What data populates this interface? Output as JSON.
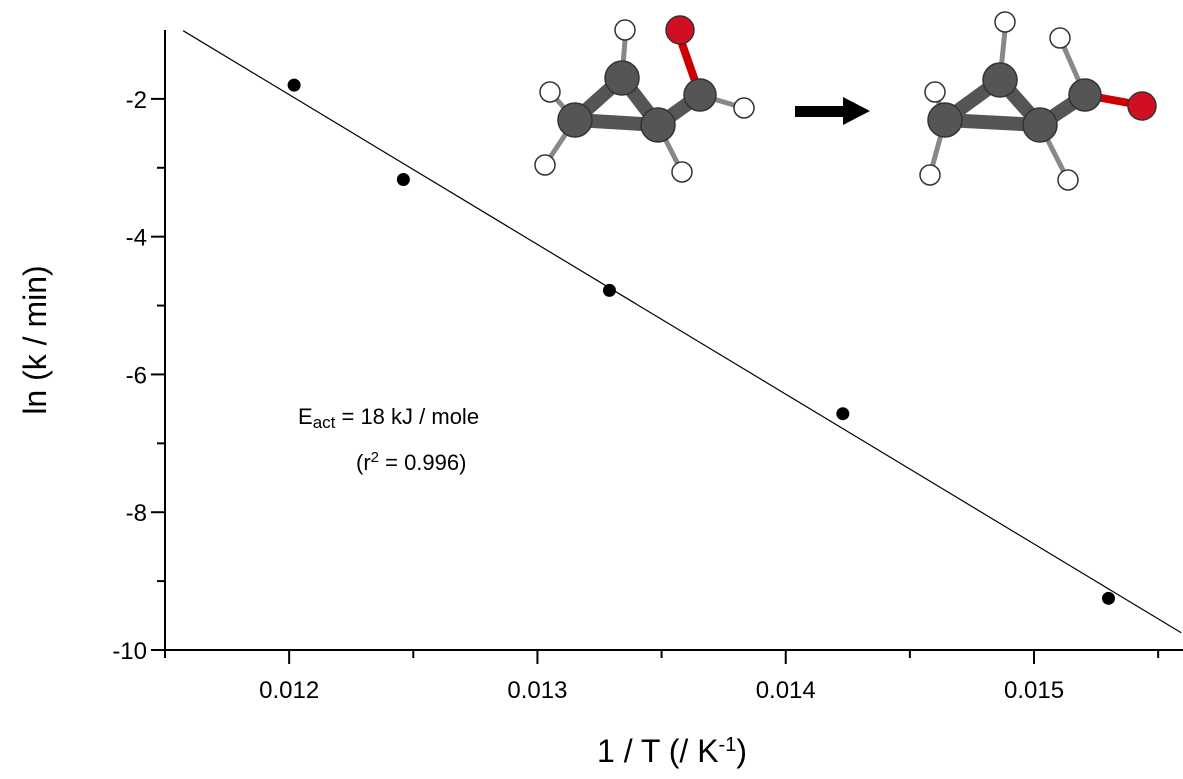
{
  "chart_data": {
    "type": "scatter",
    "x": [
      0.01202,
      0.01246,
      0.01329,
      0.01423,
      0.0153
    ],
    "values": [
      -1.8,
      -3.17,
      -4.78,
      -6.57,
      -9.25
    ],
    "color": "#000000",
    "fit_line": {
      "x": [
        0.011573,
        0.015593
      ],
      "values": [
        -1.01,
        -9.75
      ]
    },
    "xlim": [
      0.0115,
      0.0156
    ],
    "ylim": [
      -10,
      -1
    ],
    "xticks": [
      0.012,
      0.013,
      0.014,
      0.015
    ],
    "yticks": [
      -2,
      -4,
      -6,
      -8,
      -10
    ],
    "xminorticks": [
      0.0115,
      0.0125,
      0.0135,
      0.0145,
      0.0155
    ],
    "yminorticks": [
      -3,
      -5,
      -7,
      -9
    ],
    "x_label": {
      "text": "1 / T (/ K",
      "sup": "-1",
      "end": ")"
    },
    "y_label": "ln (k / min)",
    "annotation": {
      "e": "E",
      "sub": "act",
      "rest": " = 18 kJ / mole",
      "r_open": "(r",
      "r_sup": "2",
      "r_rest": " = 0.996)"
    }
  }
}
